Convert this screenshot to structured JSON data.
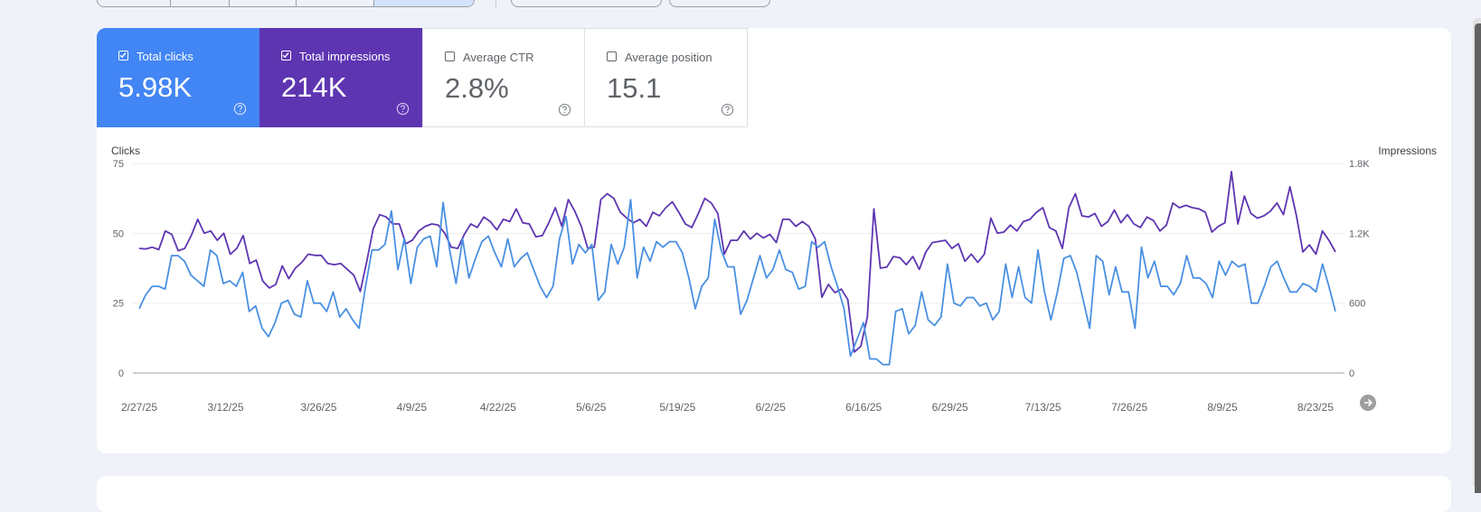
{
  "metrics": [
    {
      "id": "clicks",
      "label": "Total clicks",
      "value": "5.98K",
      "checked": true
    },
    {
      "id": "impressions",
      "label": "Total impressions",
      "value": "214K",
      "checked": true
    },
    {
      "id": "ctr",
      "label": "Average CTR",
      "value": "2.8%",
      "checked": false
    },
    {
      "id": "position",
      "label": "Average position",
      "value": "15.1",
      "checked": false
    }
  ],
  "chart_data": {
    "type": "line",
    "y_left_label": "Clicks",
    "y_right_label": "Impressions",
    "y_left_ticks": [
      "75",
      "50",
      "25",
      "0"
    ],
    "y_right_ticks": [
      "1.8K",
      "1.2K",
      "600",
      "0"
    ],
    "y_left_range": [
      0,
      75
    ],
    "y_right_range": [
      0,
      1800
    ],
    "x_ticks": [
      "2/27/25",
      "3/12/25",
      "3/26/25",
      "4/9/25",
      "4/22/25",
      "5/6/25",
      "5/19/25",
      "6/2/25",
      "6/16/25",
      "6/29/25",
      "7/13/25",
      "7/26/25",
      "8/9/25",
      "8/23/25"
    ],
    "date_range": [
      "2/27/25",
      "8/26/25"
    ],
    "grid": true,
    "series": [
      {
        "name": "Total clicks",
        "color": "#4a90e2",
        "axis": "left",
        "values": [
          23,
          28,
          31,
          31,
          30,
          42,
          42,
          40,
          35,
          33,
          31,
          44,
          42,
          32,
          33,
          31,
          36,
          22,
          24,
          16,
          13,
          18,
          25,
          26,
          21,
          20,
          33,
          25,
          25,
          22,
          29,
          20,
          23,
          19,
          16,
          31,
          44,
          44,
          46,
          58,
          37,
          48,
          32,
          45,
          48,
          49,
          38,
          61,
          44,
          32,
          48,
          34,
          41,
          47,
          49,
          43,
          38,
          48,
          38,
          41,
          43,
          37,
          31,
          27,
          31,
          48,
          56,
          39,
          46,
          43,
          46,
          26,
          29,
          46,
          39,
          45,
          62,
          34,
          45,
          40,
          47,
          45,
          47,
          47,
          43,
          34,
          23,
          31,
          34,
          55,
          44,
          38,
          38,
          21,
          26,
          34,
          42,
          34,
          37,
          44,
          37,
          36,
          30,
          31,
          47,
          45,
          47,
          38,
          31,
          23,
          6,
          12,
          18,
          5,
          5,
          3,
          3,
          22,
          23,
          14,
          17,
          29,
          19,
          17,
          20,
          39,
          25,
          24,
          27,
          27,
          24,
          25,
          19,
          22,
          39,
          27,
          38,
          27,
          25,
          44,
          29,
          19,
          29,
          41,
          42,
          36,
          26,
          16,
          42,
          40,
          28,
          38,
          29,
          29,
          16,
          45,
          34,
          40,
          31,
          31,
          28,
          32,
          42,
          34,
          34,
          32,
          27,
          40,
          35,
          40,
          38,
          39,
          25,
          25,
          31,
          38,
          40,
          34,
          29,
          29,
          32,
          31,
          29,
          39,
          31,
          22
        ]
      },
      {
        "name": "Total impressions",
        "color": "#5e35b1",
        "axis": "right",
        "values": [
          1070,
          1065,
          1080,
          1060,
          1220,
          1190,
          1050,
          1070,
          1180,
          1320,
          1200,
          1220,
          1140,
          1200,
          1020,
          1070,
          1180,
          940,
          970,
          790,
          730,
          760,
          920,
          810,
          900,
          950,
          1020,
          1010,
          1010,
          940,
          930,
          940,
          890,
          840,
          700,
          960,
          1240,
          1360,
          1340,
          1280,
          1280,
          1110,
          1140,
          1220,
          1260,
          1280,
          1270,
          1200,
          1080,
          1070,
          1190,
          1280,
          1250,
          1340,
          1300,
          1230,
          1320,
          1300,
          1410,
          1290,
          1280,
          1170,
          1180,
          1290,
          1420,
          1260,
          1490,
          1390,
          1260,
          1070,
          1080,
          1490,
          1540,
          1500,
          1380,
          1330,
          1290,
          1320,
          1260,
          1380,
          1350,
          1420,
          1470,
          1380,
          1280,
          1250,
          1370,
          1500,
          1460,
          1370,
          1020,
          1140,
          1140,
          1220,
          1150,
          1200,
          1160,
          1190,
          1120,
          1320,
          1320,
          1260,
          1300,
          1260,
          1150,
          650,
          760,
          690,
          720,
          630,
          180,
          230,
          480,
          1410,
          900,
          910,
          1000,
          990,
          930,
          1000,
          890,
          1040,
          1120,
          1130,
          1140,
          1070,
          1110,
          960,
          1020,
          950,
          1020,
          1330,
          1200,
          1210,
          1270,
          1220,
          1300,
          1320,
          1380,
          1420,
          1250,
          1220,
          1070,
          1420,
          1540,
          1350,
          1340,
          1370,
          1260,
          1300,
          1400,
          1290,
          1360,
          1280,
          1250,
          1340,
          1310,
          1220,
          1270,
          1460,
          1420,
          1440,
          1420,
          1410,
          1380,
          1210,
          1260,
          1290,
          1730,
          1280,
          1520,
          1370,
          1330,
          1350,
          1390,
          1460,
          1360,
          1600,
          1350,
          1040,
          1100,
          1020,
          1220,
          1140,
          1040
        ]
      }
    ]
  }
}
